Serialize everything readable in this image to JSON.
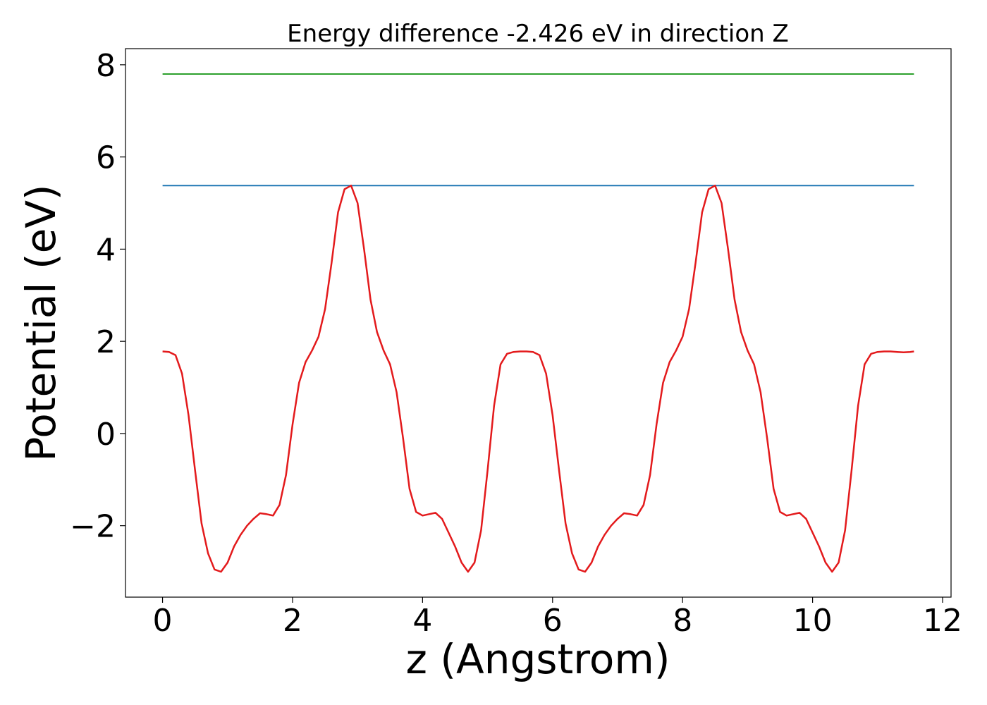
{
  "chart_data": {
    "type": "line",
    "title": "Energy difference -2.426 eV in direction Z",
    "xlabel": "z (Angstrom)",
    "ylabel": "Potential (eV)",
    "xlim": [
      -0.57,
      12.13
    ],
    "ylim": [
      -3.55,
      8.35
    ],
    "xticks": [
      0,
      2,
      4,
      6,
      8,
      10,
      12
    ],
    "yticks": [
      -2,
      0,
      2,
      4,
      6,
      8
    ],
    "xtick_labels": [
      "0",
      "2",
      "4",
      "6",
      "8",
      "10",
      "12"
    ],
    "ytick_labels": [
      "−2",
      "0",
      "2",
      "4",
      "6",
      "8"
    ],
    "grid": false,
    "series": [
      {
        "color": "#2ca02c",
        "x": [
          0,
          11.56
        ],
        "y": [
          7.8,
          7.8
        ]
      },
      {
        "color": "#1f77b4",
        "x": [
          0,
          11.56
        ],
        "y": [
          5.38,
          5.38
        ]
      },
      {
        "color": "#e31a1c",
        "x": [
          0,
          0.1,
          0.2,
          0.3,
          0.4,
          0.5,
          0.6,
          0.7,
          0.8,
          0.9,
          1.0,
          1.1,
          1.2,
          1.3,
          1.4,
          1.5,
          1.6,
          1.7,
          1.8,
          1.9,
          2.0,
          2.1,
          2.2,
          2.3,
          2.4,
          2.5,
          2.6,
          2.7,
          2.8,
          2.9,
          3.0,
          3.1,
          3.2,
          3.3,
          3.4,
          3.5,
          3.6,
          3.7,
          3.8,
          3.9,
          4.0,
          4.1,
          4.2,
          4.3,
          4.4,
          4.5,
          4.6,
          4.7,
          4.8,
          4.9,
          5.0,
          5.1,
          5.2,
          5.3,
          5.4,
          5.5,
          5.6,
          5.7,
          5.8,
          5.9,
          6.0,
          6.1,
          6.2,
          6.3,
          6.4,
          6.5,
          6.6,
          6.7,
          6.8,
          6.9,
          7.0,
          7.1,
          7.2,
          7.3,
          7.4,
          7.5,
          7.6,
          7.7,
          7.8,
          7.9,
          8.0,
          8.1,
          8.2,
          8.3,
          8.4,
          8.5,
          8.6,
          8.7,
          8.8,
          8.9,
          9.0,
          9.1,
          9.2,
          9.3,
          9.4,
          9.5,
          9.6,
          9.7,
          9.8,
          9.9,
          10.0,
          10.1,
          10.2,
          10.3,
          10.4,
          10.5,
          10.6,
          10.7,
          10.8,
          10.9,
          11.0,
          11.1,
          11.2,
          11.3,
          11.4,
          11.5,
          11.56
        ],
        "y": [
          1.78,
          1.77,
          1.7,
          1.3,
          0.4,
          -0.8,
          -1.95,
          -2.6,
          -2.95,
          -3.0,
          -2.8,
          -2.45,
          -2.2,
          -2.0,
          -1.85,
          -1.73,
          -1.75,
          -1.78,
          -1.55,
          -0.9,
          0.2,
          1.1,
          1.55,
          1.8,
          2.1,
          2.7,
          3.7,
          4.8,
          5.3,
          5.38,
          5.0,
          4.0,
          2.9,
          2.2,
          1.8,
          1.5,
          0.9,
          -0.1,
          -1.2,
          -1.7,
          -1.78,
          -1.75,
          -1.72,
          -1.85,
          -2.15,
          -2.45,
          -2.8,
          -3.0,
          -2.8,
          -2.1,
          -0.8,
          0.6,
          1.5,
          1.73,
          1.77,
          1.78,
          1.78,
          1.77,
          1.7,
          1.3,
          0.4,
          -0.8,
          -1.95,
          -2.6,
          -2.95,
          -3.0,
          -2.8,
          -2.45,
          -2.2,
          -2.0,
          -1.85,
          -1.73,
          -1.75,
          -1.78,
          -1.55,
          -0.9,
          0.2,
          1.1,
          1.55,
          1.8,
          2.1,
          2.7,
          3.7,
          4.8,
          5.3,
          5.38,
          5.0,
          4.0,
          2.9,
          2.2,
          1.8,
          1.5,
          0.9,
          -0.1,
          -1.2,
          -1.7,
          -1.78,
          -1.75,
          -1.72,
          -1.85,
          -2.15,
          -2.45,
          -2.8,
          -3.0,
          -2.8,
          -2.1,
          -0.8,
          0.6,
          1.5,
          1.73,
          1.77,
          1.78,
          1.78,
          1.77,
          1.76,
          1.77,
          1.78
        ]
      }
    ]
  }
}
